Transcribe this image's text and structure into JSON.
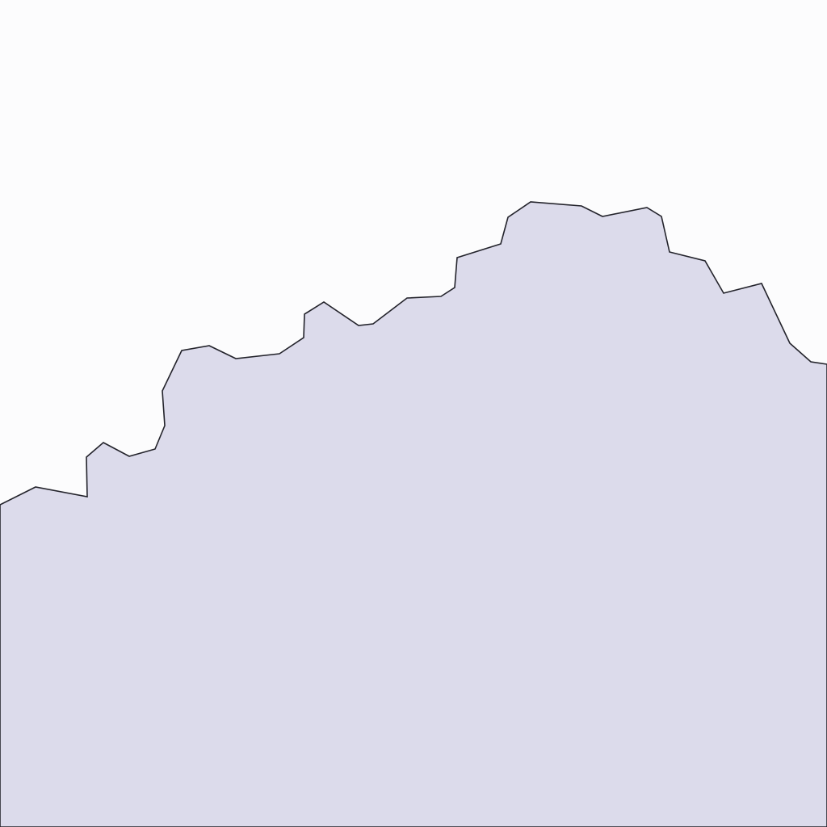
{
  "map": {
    "background_color": "#fcfcfd",
    "region_fill_color": "#dcdbeb",
    "border_color": "#23232b"
  }
}
